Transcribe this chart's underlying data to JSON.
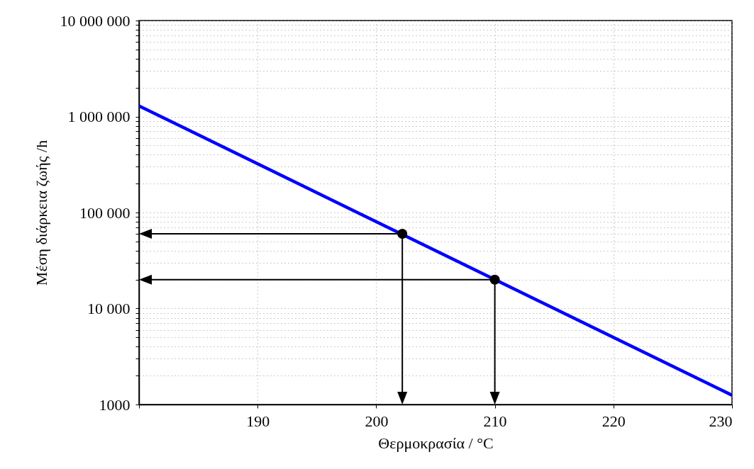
{
  "chart_data": {
    "type": "line",
    "xlabel": "Θερμοκρασία / °C",
    "ylabel": "Μέση διάρκεια ζωής /h",
    "log": "y",
    "grid": true,
    "xlim": [
      180,
      230
    ],
    "xticks": [
      {
        "value": 180,
        "label": null
      },
      190,
      200,
      210,
      220,
      230
    ],
    "ylim": [
      1000,
      10000000
    ],
    "yticks": [
      1000,
      {
        "value": 2000,
        "label": null
      },
      {
        "value": 3000,
        "label": null
      },
      {
        "value": 4000,
        "label": null
      },
      {
        "value": 5000,
        "label": null
      },
      {
        "value": 6000,
        "label": null
      },
      {
        "value": 7000,
        "label": null
      },
      {
        "value": 8000,
        "label": null
      },
      {
        "value": 9000,
        "label": null
      },
      {
        "value": 10000,
        "label": "10 000"
      },
      {
        "value": 20000,
        "label": null
      },
      {
        "value": 30000,
        "label": null
      },
      {
        "value": 40000,
        "label": null
      },
      {
        "value": 50000,
        "label": null
      },
      {
        "value": 60000,
        "label": null
      },
      {
        "value": 70000,
        "label": null
      },
      {
        "value": 80000,
        "label": null
      },
      {
        "value": 90000,
        "label": null
      },
      {
        "value": 100000,
        "label": "100 000"
      },
      {
        "value": 200000,
        "label": null
      },
      {
        "value": 300000,
        "label": null
      },
      {
        "value": 400000,
        "label": null
      },
      {
        "value": 500000,
        "label": null
      },
      {
        "value": 600000,
        "label": null
      },
      {
        "value": 700000,
        "label": null
      },
      {
        "value": 800000,
        "label": null
      },
      {
        "value": 900000,
        "label": null
      },
      {
        "value": 1000000,
        "label": "1 000 000"
      },
      {
        "value": 2000000,
        "label": null
      },
      {
        "value": 3000000,
        "label": null
      },
      {
        "value": 4000000,
        "label": null
      },
      {
        "value": 5000000,
        "label": null
      },
      {
        "value": 6000000,
        "label": null
      },
      {
        "value": 7000000,
        "label": null
      },
      {
        "value": 8000000,
        "label": null
      },
      {
        "value": 9000000,
        "label": null
      },
      {
        "value": 10000000,
        "label": "10 000 000"
      }
    ],
    "series": [
      {
        "color": "#0000ff",
        "x": [
          180,
          230
        ],
        "values": [
          1290000,
          1250
        ]
      },
      {
        "type": "scatter",
        "color": "#000000",
        "marker": "circle",
        "x": [
          202.2,
          210
        ],
        "values": [
          60000,
          20000
        ]
      }
    ]
  }
}
